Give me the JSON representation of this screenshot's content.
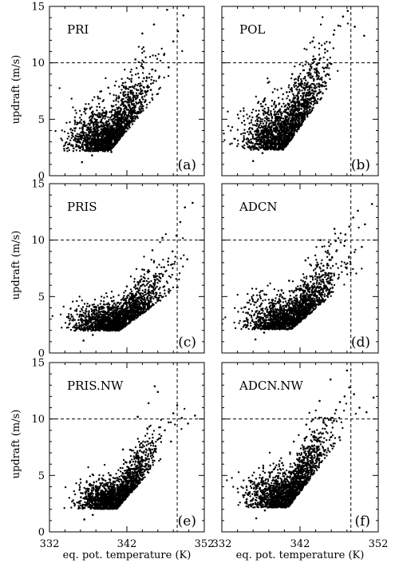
{
  "chart_data": {
    "type": "scatter",
    "xlabel": "eq. pot. temperature (K)",
    "ylabel": "updraft (m/s)",
    "xlim": [
      332,
      352
    ],
    "ylim": [
      0,
      15
    ],
    "xticks": [
      332,
      342,
      352
    ],
    "xtick_labels": [
      "332",
      "342",
      "352"
    ],
    "yticks": [
      0,
      5,
      10,
      15
    ],
    "ytick_labels": [
      "0",
      "5",
      "10",
      "15"
    ],
    "reference_lines": {
      "x": 348.5,
      "y": 10
    },
    "grid": false,
    "marker_color": "#000000",
    "panels": [
      {
        "name": "PRI",
        "tag": "(a)",
        "points": [
          [
            336.2,
            1.2
          ],
          [
            337.5,
            1.8
          ],
          [
            338.4,
            2.5
          ],
          [
            339.1,
            3.2
          ],
          [
            340.0,
            2.1
          ],
          [
            340.8,
            3.9
          ],
          [
            341.2,
            5.1
          ],
          [
            341.9,
            4.3
          ],
          [
            342.3,
            6.2
          ],
          [
            342.8,
            5.7
          ],
          [
            343.4,
            7.1
          ],
          [
            343.9,
            6.5
          ],
          [
            344.5,
            8.4
          ],
          [
            345.1,
            7.6
          ],
          [
            345.7,
            9.3
          ],
          [
            346.2,
            8.8
          ],
          [
            346.8,
            10.7
          ],
          [
            347.4,
            9.6
          ],
          [
            348.0,
            11.9
          ],
          [
            348.6,
            12.8
          ],
          [
            349.3,
            14.2
          ],
          [
            344.0,
            12.6
          ],
          [
            345.5,
            13.4
          ],
          [
            347.2,
            14.7
          ],
          [
            339.6,
            7.8
          ],
          [
            338.2,
            5.4
          ],
          [
            337.0,
            3.6
          ],
          [
            341.5,
            8.2
          ],
          [
            343.1,
            10.3
          ],
          [
            336.8,
            2.4
          ]
        ],
        "cloud": {
          "cx": 339.8,
          "cy": 2.8,
          "sx": 2.4,
          "sy": 1.6,
          "slope": 0.9,
          "n": 1800
        }
      },
      {
        "name": "POL",
        "tag": "(b)",
        "points": [
          [
            336.0,
            1.3
          ],
          [
            337.2,
            2.0
          ],
          [
            338.3,
            2.9
          ],
          [
            339.0,
            3.4
          ],
          [
            339.9,
            4.6
          ],
          [
            340.6,
            4.1
          ],
          [
            341.3,
            5.8
          ],
          [
            341.8,
            6.4
          ],
          [
            342.4,
            7.0
          ],
          [
            342.9,
            8.1
          ],
          [
            343.5,
            8.7
          ],
          [
            344.1,
            9.5
          ],
          [
            344.6,
            10.4
          ],
          [
            345.2,
            11.2
          ],
          [
            345.8,
            11.8
          ],
          [
            346.3,
            12.5
          ],
          [
            346.9,
            13.3
          ],
          [
            347.5,
            14.1
          ],
          [
            348.1,
            14.6
          ],
          [
            349.0,
            13.2
          ],
          [
            350.2,
            12.4
          ],
          [
            338.9,
            6.1
          ],
          [
            340.3,
            7.4
          ],
          [
            341.0,
            9.0
          ],
          [
            343.6,
            11.9
          ],
          [
            336.7,
            2.8
          ],
          [
            344.9,
            7.3
          ],
          [
            346.0,
            9.9
          ]
        ],
        "cloud": {
          "cx": 339.9,
          "cy": 3.0,
          "sx": 2.4,
          "sy": 1.8,
          "slope": 1.05,
          "n": 1800
        }
      },
      {
        "name": "PRIS",
        "tag": "(c)",
        "points": [
          [
            336.4,
            1.1
          ],
          [
            337.6,
            1.6
          ],
          [
            338.5,
            2.0
          ],
          [
            339.3,
            2.4
          ],
          [
            340.2,
            2.9
          ],
          [
            341.0,
            3.3
          ],
          [
            341.7,
            3.8
          ],
          [
            342.4,
            4.2
          ],
          [
            343.1,
            4.7
          ],
          [
            343.8,
            5.1
          ],
          [
            344.4,
            5.6
          ],
          [
            345.0,
            6.0
          ],
          [
            345.6,
            6.5
          ],
          [
            346.2,
            7.0
          ],
          [
            346.8,
            7.6
          ],
          [
            347.3,
            8.1
          ],
          [
            347.9,
            9.0
          ],
          [
            348.4,
            10.4
          ],
          [
            348.9,
            11.6
          ],
          [
            349.5,
            12.9
          ],
          [
            350.5,
            13.3
          ],
          [
            345.3,
            9.1
          ],
          [
            346.6,
            10.2
          ],
          [
            344.0,
            7.4
          ],
          [
            342.0,
            5.9
          ],
          [
            340.4,
            4.4
          ],
          [
            338.0,
            3.0
          ],
          [
            349.8,
            8.3
          ]
        ],
        "cloud": {
          "cx": 341.0,
          "cy": 2.4,
          "sx": 2.7,
          "sy": 1.1,
          "slope": 0.55,
          "n": 1800
        }
      },
      {
        "name": "ADCN",
        "tag": "(d)",
        "points": [
          [
            336.3,
            1.2
          ],
          [
            337.4,
            1.8
          ],
          [
            338.4,
            2.3
          ],
          [
            339.2,
            2.8
          ],
          [
            340.1,
            3.4
          ],
          [
            340.9,
            3.9
          ],
          [
            341.6,
            4.5
          ],
          [
            342.3,
            5.0
          ],
          [
            343.0,
            5.6
          ],
          [
            343.7,
            6.1
          ],
          [
            344.3,
            6.7
          ],
          [
            344.9,
            7.3
          ],
          [
            345.5,
            7.9
          ],
          [
            346.1,
            8.5
          ],
          [
            346.7,
            9.1
          ],
          [
            347.2,
            9.8
          ],
          [
            347.8,
            10.5
          ],
          [
            348.3,
            11.2
          ],
          [
            348.8,
            12.0
          ],
          [
            349.4,
            12.6
          ],
          [
            350.3,
            11.4
          ],
          [
            351.2,
            13.2
          ],
          [
            344.6,
            10.0
          ],
          [
            342.7,
            8.2
          ],
          [
            340.6,
            6.4
          ],
          [
            338.7,
            4.2
          ],
          [
            349.9,
            9.4
          ],
          [
            346.4,
            11.0
          ]
        ],
        "cloud": {
          "cx": 340.9,
          "cy": 2.6,
          "sx": 2.7,
          "sy": 1.3,
          "slope": 0.65,
          "n": 1800
        }
      },
      {
        "name": "PRIS.NW",
        "tag": "(e)",
        "points": [
          [
            336.5,
            1.1
          ],
          [
            337.6,
            1.5
          ],
          [
            338.6,
            2.1
          ],
          [
            339.4,
            2.6
          ],
          [
            340.3,
            3.1
          ],
          [
            341.1,
            3.6
          ],
          [
            341.8,
            4.2
          ],
          [
            342.5,
            4.7
          ],
          [
            343.2,
            5.3
          ],
          [
            343.9,
            5.8
          ],
          [
            344.5,
            6.4
          ],
          [
            345.1,
            7.0
          ],
          [
            345.7,
            7.6
          ],
          [
            346.3,
            8.3
          ],
          [
            346.9,
            9.0
          ],
          [
            347.4,
            9.7
          ],
          [
            348.0,
            10.5
          ],
          [
            348.5,
            11.2
          ],
          [
            349.1,
            10.1
          ],
          [
            349.9,
            9.6
          ],
          [
            350.8,
            10.3
          ],
          [
            344.8,
            11.4
          ],
          [
            346.0,
            12.4
          ],
          [
            343.4,
            10.2
          ],
          [
            341.5,
            7.3
          ],
          [
            339.9,
            5.0
          ],
          [
            345.6,
            12.9
          ],
          [
            347.7,
            8.0
          ]
        ],
        "cloud": {
          "cx": 340.7,
          "cy": 2.5,
          "sx": 2.2,
          "sy": 1.2,
          "slope": 0.85,
          "n": 1800
        }
      },
      {
        "name": "ADCN.NW",
        "tag": "(f)",
        "points": [
          [
            336.4,
            1.2
          ],
          [
            337.5,
            1.9
          ],
          [
            338.5,
            2.6
          ],
          [
            339.3,
            3.2
          ],
          [
            340.1,
            3.9
          ],
          [
            340.9,
            4.5
          ],
          [
            341.6,
            5.2
          ],
          [
            342.3,
            5.9
          ],
          [
            343.0,
            6.6
          ],
          [
            343.6,
            7.3
          ],
          [
            344.2,
            8.0
          ],
          [
            344.8,
            8.7
          ],
          [
            345.4,
            9.4
          ],
          [
            346.0,
            10.1
          ],
          [
            346.6,
            10.8
          ],
          [
            347.1,
            11.5
          ],
          [
            347.7,
            12.0
          ],
          [
            348.3,
            12.8
          ],
          [
            348.9,
            12.2
          ],
          [
            349.6,
            11.0
          ],
          [
            350.5,
            10.6
          ],
          [
            351.4,
            11.9
          ],
          [
            342.8,
            9.5
          ],
          [
            341.2,
            8.0
          ],
          [
            339.7,
            6.1
          ],
          [
            345.9,
            13.5
          ],
          [
            348.0,
            14.3
          ],
          [
            344.5,
            11.6
          ]
        ],
        "cloud": {
          "cx": 340.5,
          "cy": 2.7,
          "sx": 2.4,
          "sy": 1.4,
          "slope": 1.0,
          "n": 1800
        }
      }
    ]
  }
}
